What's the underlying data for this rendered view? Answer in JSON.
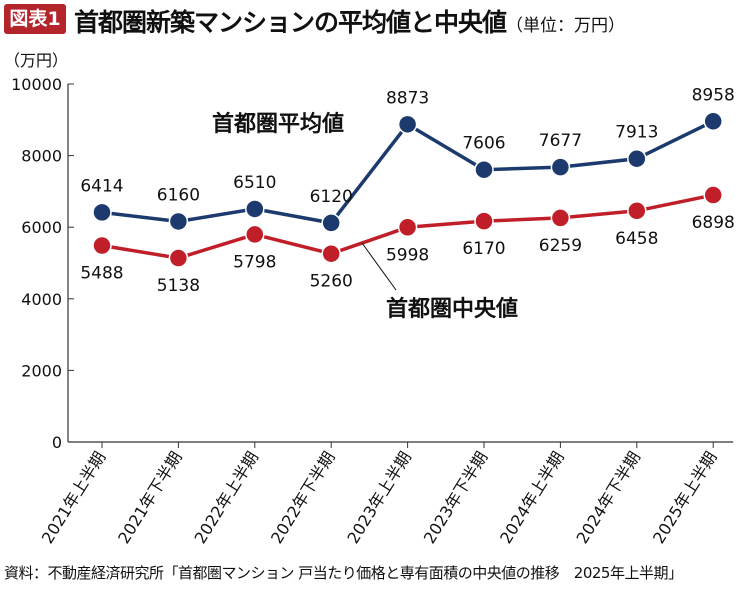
{
  "header": {
    "badge": "図表1",
    "title": "首都圏新築マンションの平均値と中央値",
    "unit": "（単位：万円）"
  },
  "source": "資料：不動産経済研究所「首都圏マンション 戸当たり価格と専有面積の中央値の推移　2025年上半期」",
  "chart_data": {
    "type": "line",
    "title": "首都圏新築マンションの平均値と中央値",
    "ylabel": "（万円）",
    "ylim": [
      0,
      10000
    ],
    "yticks": [
      0,
      2000,
      4000,
      6000,
      8000,
      10000
    ],
    "grid": false,
    "categories": [
      "2021年上半期",
      "2021年下半期",
      "2022年上半期",
      "2022年下半期",
      "2023年上半期",
      "2023年下半期",
      "2024年上半期",
      "2024年下半期",
      "2025年上半期"
    ],
    "series": [
      {
        "name": "首都圏平均値",
        "color": "#1c3a6e",
        "values": [
          6414,
          6160,
          6510,
          6120,
          8873,
          7606,
          7677,
          7913,
          8958
        ]
      },
      {
        "name": "首都圏中央値",
        "color": "#c01f2a",
        "values": [
          5488,
          5138,
          5798,
          5260,
          5998,
          6170,
          6259,
          6458,
          6898
        ]
      }
    ]
  }
}
